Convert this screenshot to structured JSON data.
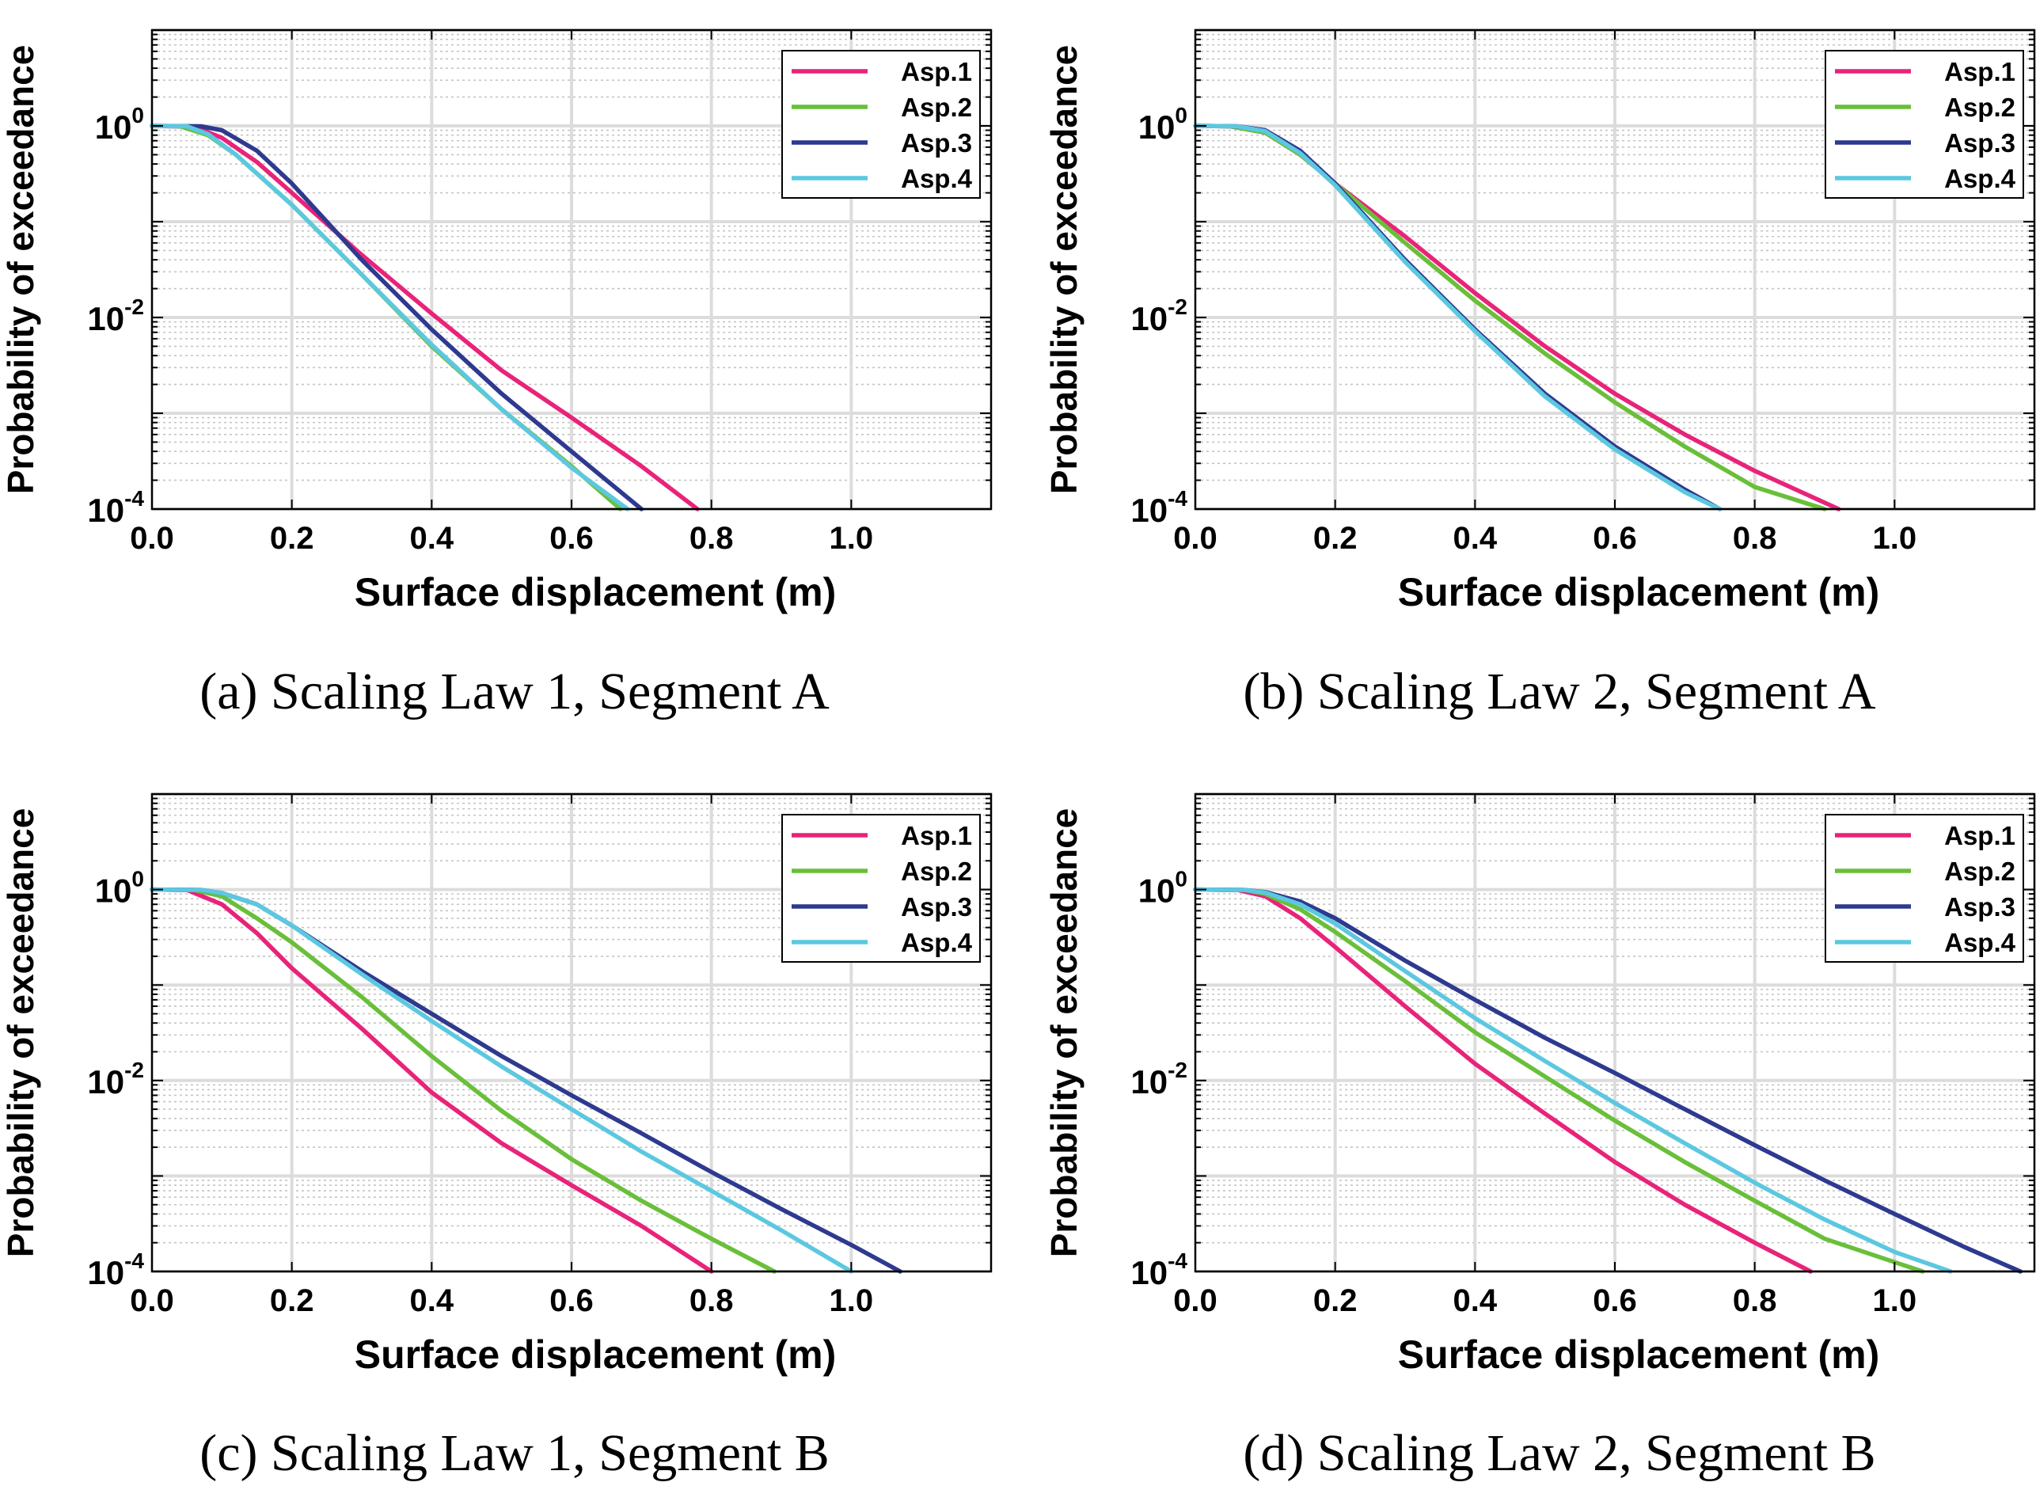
{
  "chart_data": [
    {
      "type": "line",
      "caption": "(a) Scaling Law 1, Segment A",
      "xlabel": "Surface displacement (m)",
      "ylabel": "Probability of exceedance",
      "xlim": [
        0,
        1.2
      ],
      "ylim": [
        0.0001,
        10
      ],
      "yscale": "log",
      "grid": true,
      "legend": "top-right",
      "xticks": [
        "0.0",
        "0.2",
        "0.4",
        "0.6",
        "0.8",
        "1.0"
      ],
      "yticks": [
        {
          "base": "10",
          "exp": "0",
          "value": 1
        },
        {
          "base": "10",
          "exp": "-2",
          "value": 0.01
        },
        {
          "base": "10",
          "exp": "-4",
          "value": 0.0001
        }
      ],
      "series": [
        {
          "name": "Asp.1",
          "color": "#e8237a",
          "x": [
            0,
            0.06,
            0.1,
            0.15,
            0.2,
            0.3,
            0.4,
            0.5,
            0.6,
            0.7,
            0.78
          ],
          "y": [
            1,
            0.98,
            0.75,
            0.42,
            0.2,
            0.045,
            0.011,
            0.0028,
            0.0009,
            0.00028,
            0.0001
          ]
        },
        {
          "name": "Asp.2",
          "color": "#6abf3a",
          "x": [
            0,
            0.04,
            0.08,
            0.12,
            0.2,
            0.3,
            0.4,
            0.5,
            0.6,
            0.67
          ],
          "y": [
            1,
            0.99,
            0.8,
            0.5,
            0.15,
            0.028,
            0.005,
            0.0011,
            0.00028,
            0.0001
          ]
        },
        {
          "name": "Asp.3",
          "color": "#2e3a8f",
          "x": [
            0,
            0.07,
            0.1,
            0.15,
            0.2,
            0.3,
            0.4,
            0.5,
            0.6,
            0.7
          ],
          "y": [
            1,
            0.99,
            0.9,
            0.55,
            0.25,
            0.04,
            0.0075,
            0.0016,
            0.0004,
            0.0001
          ]
        },
        {
          "name": "Asp.4",
          "color": "#5cc8e0",
          "x": [
            0,
            0.05,
            0.08,
            0.12,
            0.2,
            0.3,
            0.4,
            0.5,
            0.6,
            0.68
          ],
          "y": [
            1,
            0.99,
            0.82,
            0.5,
            0.15,
            0.028,
            0.0052,
            0.0011,
            0.00027,
            0.0001
          ]
        }
      ]
    },
    {
      "type": "line",
      "caption": "(b) Scaling Law 2, Segment A",
      "xlabel": "Surface displacement (m)",
      "ylabel": "Probability of exceedance",
      "xlim": [
        0,
        1.2
      ],
      "ylim": [
        0.0001,
        10
      ],
      "yscale": "log",
      "grid": true,
      "legend": "top-right",
      "xticks": [
        "0.0",
        "0.2",
        "0.4",
        "0.6",
        "0.8",
        "1.0"
      ],
      "yticks": [
        {
          "base": "10",
          "exp": "0",
          "value": 1
        },
        {
          "base": "10",
          "exp": "-2",
          "value": 0.01
        },
        {
          "base": "10",
          "exp": "-4",
          "value": 0.0001
        }
      ],
      "series": [
        {
          "name": "Asp.1",
          "color": "#e8237a",
          "x": [
            0,
            0.05,
            0.1,
            0.15,
            0.2,
            0.3,
            0.4,
            0.5,
            0.6,
            0.7,
            0.8,
            0.92
          ],
          "y": [
            1,
            0.99,
            0.85,
            0.5,
            0.25,
            0.07,
            0.018,
            0.005,
            0.0016,
            0.0006,
            0.00025,
            0.0001
          ]
        },
        {
          "name": "Asp.2",
          "color": "#6abf3a",
          "x": [
            0,
            0.05,
            0.1,
            0.15,
            0.2,
            0.3,
            0.4,
            0.5,
            0.6,
            0.7,
            0.8,
            0.9
          ],
          "y": [
            1,
            0.99,
            0.85,
            0.5,
            0.25,
            0.06,
            0.015,
            0.0042,
            0.0013,
            0.00045,
            0.00017,
            0.0001
          ]
        },
        {
          "name": "Asp.3",
          "color": "#2e3a8f",
          "x": [
            0,
            0.06,
            0.1,
            0.15,
            0.2,
            0.3,
            0.4,
            0.5,
            0.6,
            0.7,
            0.75
          ],
          "y": [
            1,
            0.99,
            0.9,
            0.55,
            0.25,
            0.04,
            0.0075,
            0.0016,
            0.00045,
            0.00016,
            0.0001
          ]
        },
        {
          "name": "Asp.4",
          "color": "#5cc8e0",
          "x": [
            0,
            0.06,
            0.1,
            0.15,
            0.2,
            0.3,
            0.4,
            0.5,
            0.6,
            0.7,
            0.75
          ],
          "y": [
            1,
            0.99,
            0.88,
            0.52,
            0.24,
            0.038,
            0.0072,
            0.0015,
            0.00042,
            0.00015,
            0.0001
          ]
        }
      ]
    },
    {
      "type": "line",
      "caption": "(c) Scaling Law 1, Segment B",
      "xlabel": "Surface displacement (m)",
      "ylabel": "Probability of exceedance",
      "xlim": [
        0,
        1.2
      ],
      "ylim": [
        0.0001,
        10
      ],
      "yscale": "log",
      "grid": true,
      "legend": "top-right",
      "xticks": [
        "0.0",
        "0.2",
        "0.4",
        "0.6",
        "0.8",
        "1.0"
      ],
      "yticks": [
        {
          "base": "10",
          "exp": "0",
          "value": 1
        },
        {
          "base": "10",
          "exp": "-2",
          "value": 0.01
        },
        {
          "base": "10",
          "exp": "-4",
          "value": 0.0001
        }
      ],
      "series": [
        {
          "name": "Asp.1",
          "color": "#e8237a",
          "x": [
            0,
            0.05,
            0.1,
            0.15,
            0.2,
            0.3,
            0.4,
            0.5,
            0.6,
            0.7,
            0.8
          ],
          "y": [
            1,
            0.99,
            0.7,
            0.35,
            0.15,
            0.035,
            0.0075,
            0.0022,
            0.0008,
            0.0003,
            0.0001
          ]
        },
        {
          "name": "Asp.2",
          "color": "#6abf3a",
          "x": [
            0,
            0.06,
            0.1,
            0.15,
            0.2,
            0.3,
            0.4,
            0.5,
            0.6,
            0.7,
            0.8,
            0.89
          ],
          "y": [
            1,
            0.99,
            0.85,
            0.5,
            0.28,
            0.075,
            0.018,
            0.0048,
            0.0015,
            0.00055,
            0.00022,
            0.0001
          ]
        },
        {
          "name": "Asp.3",
          "color": "#2e3a8f",
          "x": [
            0,
            0.07,
            0.1,
            0.15,
            0.2,
            0.3,
            0.4,
            0.5,
            0.6,
            0.7,
            0.8,
            0.9,
            1.0,
            1.07
          ],
          "y": [
            1,
            0.99,
            0.92,
            0.7,
            0.42,
            0.14,
            0.05,
            0.018,
            0.007,
            0.0028,
            0.0011,
            0.00045,
            0.00019,
            0.0001
          ]
        },
        {
          "name": "Asp.4",
          "color": "#5cc8e0",
          "x": [
            0,
            0.07,
            0.1,
            0.15,
            0.2,
            0.3,
            0.4,
            0.5,
            0.6,
            0.7,
            0.8,
            0.9,
            1.0
          ],
          "y": [
            1,
            0.99,
            0.92,
            0.7,
            0.42,
            0.13,
            0.042,
            0.014,
            0.005,
            0.0018,
            0.0007,
            0.00027,
            0.0001
          ]
        }
      ]
    },
    {
      "type": "line",
      "caption": "(d) Scaling Law 2, Segment B",
      "xlabel": "Surface displacement (m)",
      "ylabel": "Probability of exceedance",
      "xlim": [
        0,
        1.2
      ],
      "ylim": [
        0.0001,
        10
      ],
      "yscale": "log",
      "grid": true,
      "legend": "top-right",
      "xticks": [
        "0.0",
        "0.2",
        "0.4",
        "0.6",
        "0.8",
        "1.0"
      ],
      "yticks": [
        {
          "base": "10",
          "exp": "0",
          "value": 1
        },
        {
          "base": "10",
          "exp": "-2",
          "value": 0.01
        },
        {
          "base": "10",
          "exp": "-4",
          "value": 0.0001
        }
      ],
      "series": [
        {
          "name": "Asp.1",
          "color": "#e8237a",
          "x": [
            0,
            0.06,
            0.1,
            0.15,
            0.2,
            0.3,
            0.4,
            0.5,
            0.6,
            0.7,
            0.8,
            0.88
          ],
          "y": [
            1,
            0.99,
            0.85,
            0.5,
            0.25,
            0.06,
            0.015,
            0.0045,
            0.0014,
            0.0005,
            0.0002,
            0.0001
          ]
        },
        {
          "name": "Asp.2",
          "color": "#6abf3a",
          "x": [
            0,
            0.07,
            0.1,
            0.15,
            0.2,
            0.3,
            0.4,
            0.5,
            0.6,
            0.7,
            0.8,
            0.9,
            1.04
          ],
          "y": [
            1,
            0.99,
            0.9,
            0.62,
            0.36,
            0.11,
            0.032,
            0.011,
            0.0038,
            0.0014,
            0.00055,
            0.00022,
            0.0001
          ]
        },
        {
          "name": "Asp.3",
          "color": "#2e3a8f",
          "x": [
            0,
            0.07,
            0.1,
            0.15,
            0.2,
            0.3,
            0.4,
            0.5,
            0.6,
            0.7,
            0.8,
            0.9,
            1.0,
            1.1,
            1.18
          ],
          "y": [
            1,
            0.99,
            0.94,
            0.75,
            0.5,
            0.18,
            0.07,
            0.028,
            0.012,
            0.005,
            0.0021,
            0.0009,
            0.0004,
            0.00018,
            0.0001
          ]
        },
        {
          "name": "Asp.4",
          "color": "#5cc8e0",
          "x": [
            0,
            0.07,
            0.1,
            0.15,
            0.2,
            0.3,
            0.4,
            0.5,
            0.6,
            0.7,
            0.8,
            0.9,
            1.0,
            1.08
          ],
          "y": [
            1,
            0.99,
            0.93,
            0.7,
            0.44,
            0.14,
            0.045,
            0.016,
            0.0058,
            0.0022,
            0.00085,
            0.00035,
            0.00016,
            0.0001
          ]
        }
      ]
    }
  ]
}
